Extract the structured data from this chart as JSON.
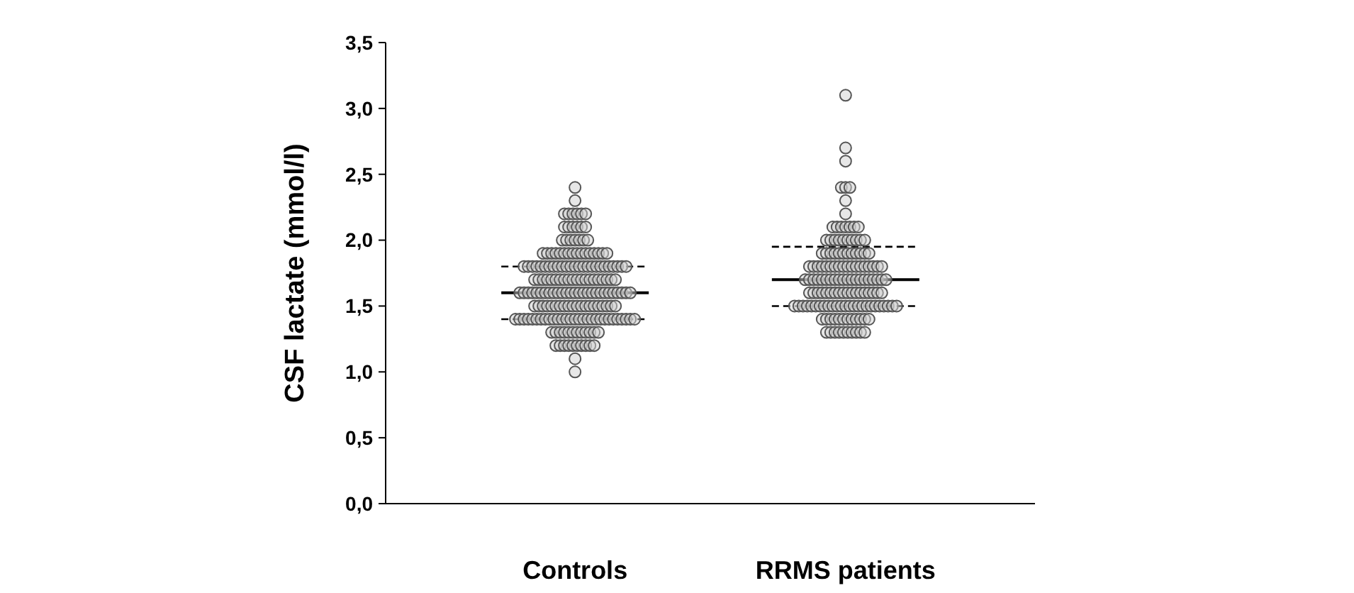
{
  "chart_data": {
    "type": "scatter",
    "ylabel": "CSF lactate (mmol/l)",
    "categories": [
      "Controls",
      "RRMS patients"
    ],
    "ylim": [
      0,
      3.5
    ],
    "yticks": [
      {
        "value": 0,
        "label": "0,0"
      },
      {
        "value": 0.5,
        "label": "0,5"
      },
      {
        "value": 1,
        "label": "1,0"
      },
      {
        "value": 1.5,
        "label": "1,5"
      },
      {
        "value": 2,
        "label": "2,0"
      },
      {
        "value": 2.5,
        "label": "2,5"
      },
      {
        "value": 3,
        "label": "3,0"
      },
      {
        "value": 3.5,
        "label": "3,5"
      }
    ],
    "grid": false,
    "marker": "circle",
    "series": [
      {
        "color": "#555555",
        "x": [
          "Controls",
          "Controls",
          "Controls",
          "Controls",
          "Controls",
          "Controls",
          "Controls",
          "Controls",
          "Controls",
          "Controls",
          "Controls",
          "Controls",
          "Controls",
          "Controls",
          "Controls",
          "Controls",
          "Controls",
          "Controls",
          "Controls",
          "Controls",
          "Controls",
          "Controls",
          "Controls",
          "Controls",
          "Controls",
          "Controls",
          "Controls",
          "Controls",
          "Controls",
          "Controls",
          "Controls",
          "Controls",
          "Controls",
          "Controls",
          "Controls",
          "Controls",
          "Controls",
          "Controls",
          "Controls",
          "Controls",
          "Controls",
          "Controls",
          "Controls",
          "Controls",
          "Controls",
          "Controls",
          "Controls",
          "Controls",
          "Controls",
          "Controls",
          "Controls",
          "Controls",
          "Controls",
          "Controls",
          "Controls",
          "Controls",
          "Controls",
          "Controls",
          "Controls",
          "Controls",
          "Controls",
          "Controls",
          "Controls",
          "Controls",
          "Controls",
          "Controls",
          "Controls",
          "Controls",
          "Controls",
          "Controls",
          "Controls",
          "Controls",
          "Controls",
          "Controls",
          "Controls",
          "Controls",
          "Controls",
          "Controls",
          "Controls",
          "Controls",
          "Controls",
          "Controls",
          "Controls",
          "Controls",
          "Controls",
          "Controls",
          "Controls",
          "Controls",
          "Controls",
          "Controls",
          "Controls",
          "Controls",
          "Controls",
          "Controls",
          "Controls",
          "Controls",
          "Controls",
          "Controls",
          "Controls",
          "Controls",
          "Controls",
          "Controls",
          "Controls",
          "Controls",
          "Controls",
          "Controls",
          "Controls",
          "Controls",
          "Controls",
          "Controls",
          "Controls",
          "Controls",
          "Controls",
          "Controls",
          "Controls",
          "Controls",
          "Controls",
          "Controls",
          "Controls",
          "Controls",
          "Controls",
          "Controls",
          "Controls",
          "Controls",
          "Controls",
          "Controls",
          "Controls",
          "Controls",
          "Controls",
          "Controls",
          "Controls",
          "Controls",
          "Controls",
          "Controls",
          "Controls",
          "Controls",
          "Controls",
          "Controls",
          "Controls",
          "Controls",
          "Controls",
          "Controls",
          "Controls",
          "Controls",
          "Controls",
          "Controls",
          "Controls",
          "Controls",
          "Controls",
          "Controls",
          "Controls",
          "Controls",
          "Controls",
          "Controls",
          "Controls",
          "Controls",
          "Controls",
          "Controls",
          "Controls",
          "Controls",
          "Controls",
          "Controls",
          "Controls",
          "Controls",
          "Controls",
          "Controls",
          "Controls",
          "Controls",
          "Controls",
          "Controls",
          "Controls",
          "Controls",
          "Controls",
          "Controls",
          "Controls",
          "Controls",
          "Controls",
          "Controls",
          "Controls",
          "Controls",
          "Controls",
          "Controls"
        ],
        "values": [
          1.0,
          1.1,
          1.2,
          1.2,
          1.2,
          1.2,
          1.2,
          1.2,
          1.2,
          1.2,
          1.2,
          1.2,
          1.3,
          1.3,
          1.3,
          1.3,
          1.3,
          1.3,
          1.3,
          1.3,
          1.3,
          1.3,
          1.3,
          1.3,
          1.4,
          1.4,
          1.4,
          1.4,
          1.4,
          1.4,
          1.4,
          1.4,
          1.4,
          1.4,
          1.4,
          1.4,
          1.4,
          1.4,
          1.4,
          1.4,
          1.4,
          1.4,
          1.4,
          1.4,
          1.4,
          1.4,
          1.4,
          1.4,
          1.4,
          1.4,
          1.4,
          1.4,
          1.4,
          1.5,
          1.5,
          1.5,
          1.5,
          1.5,
          1.5,
          1.5,
          1.5,
          1.5,
          1.5,
          1.5,
          1.5,
          1.5,
          1.5,
          1.5,
          1.5,
          1.5,
          1.5,
          1.5,
          1.5,
          1.6,
          1.6,
          1.6,
          1.6,
          1.6,
          1.6,
          1.6,
          1.6,
          1.6,
          1.6,
          1.6,
          1.6,
          1.6,
          1.6,
          1.6,
          1.6,
          1.6,
          1.6,
          1.6,
          1.6,
          1.6,
          1.6,
          1.6,
          1.6,
          1.6,
          1.6,
          1.6,
          1.7,
          1.7,
          1.7,
          1.7,
          1.7,
          1.7,
          1.7,
          1.7,
          1.7,
          1.7,
          1.7,
          1.7,
          1.7,
          1.7,
          1.7,
          1.7,
          1.7,
          1.7,
          1.7,
          1.7,
          1.8,
          1.8,
          1.8,
          1.8,
          1.8,
          1.8,
          1.8,
          1.8,
          1.8,
          1.8,
          1.8,
          1.8,
          1.8,
          1.8,
          1.8,
          1.8,
          1.8,
          1.8,
          1.8,
          1.8,
          1.8,
          1.8,
          1.8,
          1.8,
          1.8,
          1.9,
          1.9,
          1.9,
          1.9,
          1.9,
          1.9,
          1.9,
          1.9,
          1.9,
          1.9,
          1.9,
          1.9,
          1.9,
          1.9,
          1.9,
          1.9,
          2.0,
          2.0,
          2.0,
          2.0,
          2.0,
          2.0,
          2.0,
          2.1,
          2.1,
          2.1,
          2.1,
          2.1,
          2.1,
          2.2,
          2.2,
          2.2,
          2.2,
          2.2,
          2.2,
          2.3,
          2.4
        ]
      },
      {
        "color": "#555555",
        "x": [
          "RRMS patients",
          "RRMS patients",
          "RRMS patients",
          "RRMS patients",
          "RRMS patients",
          "RRMS patients",
          "RRMS patients",
          "RRMS patients",
          "RRMS patients",
          "RRMS patients",
          "RRMS patients",
          "RRMS patients",
          "RRMS patients",
          "RRMS patients",
          "RRMS patients",
          "RRMS patients",
          "RRMS patients",
          "RRMS patients",
          "RRMS patients",
          "RRMS patients",
          "RRMS patients",
          "RRMS patients",
          "RRMS patients",
          "RRMS patients",
          "RRMS patients",
          "RRMS patients",
          "RRMS patients",
          "RRMS patients",
          "RRMS patients",
          "RRMS patients",
          "RRMS patients",
          "RRMS patients",
          "RRMS patients",
          "RRMS patients",
          "RRMS patients",
          "RRMS patients",
          "RRMS patients",
          "RRMS patients",
          "RRMS patients",
          "RRMS patients",
          "RRMS patients",
          "RRMS patients",
          "RRMS patients",
          "RRMS patients",
          "RRMS patients",
          "RRMS patients",
          "RRMS patients",
          "RRMS patients",
          "RRMS patients",
          "RRMS patients",
          "RRMS patients",
          "RRMS patients",
          "RRMS patients",
          "RRMS patients",
          "RRMS patients",
          "RRMS patients",
          "RRMS patients",
          "RRMS patients",
          "RRMS patients",
          "RRMS patients",
          "RRMS patients",
          "RRMS patients",
          "RRMS patients",
          "RRMS patients",
          "RRMS patients",
          "RRMS patients",
          "RRMS patients",
          "RRMS patients",
          "RRMS patients",
          "RRMS patients",
          "RRMS patients",
          "RRMS patients",
          "RRMS patients",
          "RRMS patients",
          "RRMS patients",
          "RRMS patients",
          "RRMS patients",
          "RRMS patients",
          "RRMS patients",
          "RRMS patients",
          "RRMS patients",
          "RRMS patients",
          "RRMS patients",
          "RRMS patients",
          "RRMS patients",
          "RRMS patients",
          "RRMS patients",
          "RRMS patients",
          "RRMS patients",
          "RRMS patients",
          "RRMS patients",
          "RRMS patients",
          "RRMS patients",
          "RRMS patients",
          "RRMS patients",
          "RRMS patients",
          "RRMS patients",
          "RRMS patients",
          "RRMS patients",
          "RRMS patients",
          "RRMS patients",
          "RRMS patients",
          "RRMS patients",
          "RRMS patients",
          "RRMS patients",
          "RRMS patients",
          "RRMS patients",
          "RRMS patients",
          "RRMS patients",
          "RRMS patients",
          "RRMS patients",
          "RRMS patients",
          "RRMS patients",
          "RRMS patients",
          "RRMS patients",
          "RRMS patients",
          "RRMS patients",
          "RRMS patients",
          "RRMS patients",
          "RRMS patients",
          "RRMS patients",
          "RRMS patients",
          "RRMS patients",
          "RRMS patients",
          "RRMS patients",
          "RRMS patients",
          "RRMS patients",
          "RRMS patients",
          "RRMS patients",
          "RRMS patients",
          "RRMS patients",
          "RRMS patients",
          "RRMS patients",
          "RRMS patients",
          "RRMS patients",
          "RRMS patients",
          "RRMS patients",
          "RRMS patients",
          "RRMS patients",
          "RRMS patients"
        ],
        "values": [
          1.3,
          1.3,
          1.3,
          1.3,
          1.3,
          1.3,
          1.3,
          1.3,
          1.3,
          1.3,
          1.4,
          1.4,
          1.4,
          1.4,
          1.4,
          1.4,
          1.4,
          1.4,
          1.4,
          1.4,
          1.4,
          1.4,
          1.5,
          1.5,
          1.5,
          1.5,
          1.5,
          1.5,
          1.5,
          1.5,
          1.5,
          1.5,
          1.5,
          1.5,
          1.5,
          1.5,
          1.5,
          1.5,
          1.5,
          1.5,
          1.5,
          1.5,
          1.5,
          1.5,
          1.5,
          1.5,
          1.5,
          1.6,
          1.6,
          1.6,
          1.6,
          1.6,
          1.6,
          1.6,
          1.6,
          1.6,
          1.6,
          1.6,
          1.6,
          1.6,
          1.6,
          1.6,
          1.6,
          1.6,
          1.6,
          1.7,
          1.7,
          1.7,
          1.7,
          1.7,
          1.7,
          1.7,
          1.7,
          1.7,
          1.7,
          1.7,
          1.7,
          1.7,
          1.7,
          1.7,
          1.7,
          1.7,
          1.7,
          1.7,
          1.7,
          1.8,
          1.8,
          1.8,
          1.8,
          1.8,
          1.8,
          1.8,
          1.8,
          1.8,
          1.8,
          1.8,
          1.8,
          1.8,
          1.8,
          1.8,
          1.8,
          1.8,
          1.8,
          1.9,
          1.9,
          1.9,
          1.9,
          1.9,
          1.9,
          1.9,
          1.9,
          1.9,
          1.9,
          1.9,
          1.9,
          2.0,
          2.0,
          2.0,
          2.0,
          2.0,
          2.0,
          2.0,
          2.0,
          2.0,
          2.0,
          2.1,
          2.1,
          2.1,
          2.1,
          2.1,
          2.1,
          2.1,
          2.2,
          2.3,
          2.4,
          2.4,
          2.4,
          2.6,
          2.7,
          3.1
        ]
      },
      {
        "type": "box",
        "color": "#000000",
        "line_style": "dashed",
        "boxes": [
          {
            "low": 1.4,
            "q1": 1.4,
            "median": 1.6,
            "q3": 1.8,
            "high": 1.8
          },
          {
            "low": 1.5,
            "q1": 1.5,
            "median": 1.7,
            "q3": 1.95,
            "high": 1.95
          }
        ]
      }
    ]
  }
}
